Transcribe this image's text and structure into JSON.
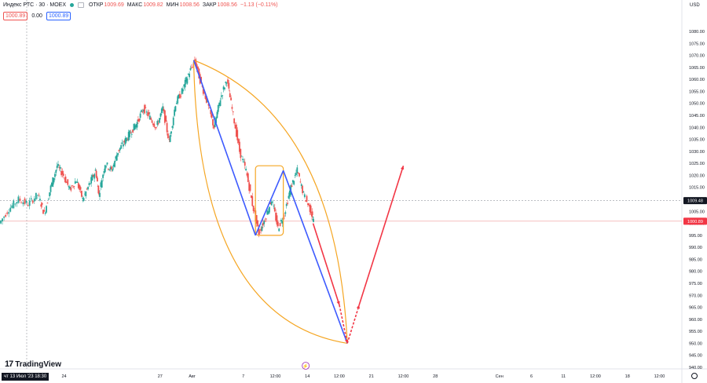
{
  "legend": {
    "symbol": "Индекс РТС · 30 · MOEX",
    "open_label": "ОТКР",
    "open": "1009.69",
    "high_label": "МАКС",
    "high": "1009.82",
    "low_label": "МИН",
    "low": "1008.56",
    "close_label": "ЗАКР",
    "close": "1008.56",
    "change": "−1.13 (−0.11%)"
  },
  "subrow": {
    "left_box": "1000.89",
    "mid": "0.00",
    "right_box": "1000.89"
  },
  "currency": "USD",
  "brand": "TradingView",
  "current_date": "чт 13 Июл '23  18:30",
  "colors": {
    "up": "#26a69a",
    "down": "#ef5350",
    "blue": "#3d5afe",
    "red": "#f23645",
    "orange": "#f5a623"
  },
  "chart_data": {
    "type": "candlestick",
    "ylim": [
      937,
      1085
    ],
    "y_ticks": [
      940,
      945,
      950,
      955,
      960,
      965,
      970,
      975,
      980,
      985,
      990,
      995,
      1000,
      1005,
      1010,
      1015,
      1020,
      1025,
      1030,
      1035,
      1040,
      1045,
      1050,
      1055,
      1060,
      1065,
      1070,
      1075,
      1080
    ],
    "x_ticks": [
      {
        "label": "12:00",
        "t": 1.0
      },
      {
        "label": "24",
        "t": 2.0
      },
      {
        "label": "27",
        "t": 5.0
      },
      {
        "label": "Авг",
        "t": 6.0
      },
      {
        "label": "7",
        "t": 7.6
      },
      {
        "label": "12:00",
        "t": 8.6
      },
      {
        "label": "14",
        "t": 9.6
      },
      {
        "label": "12:00",
        "t": 10.6
      },
      {
        "label": "21",
        "t": 11.6
      },
      {
        "label": "12:00",
        "t": 12.6
      },
      {
        "label": "28",
        "t": 13.6
      },
      {
        "label": "Сен",
        "t": 15.6
      },
      {
        "label": "6",
        "t": 16.6
      },
      {
        "label": "11",
        "t": 17.6
      },
      {
        "label": "12:00",
        "t": 18.6
      },
      {
        "label": "18",
        "t": 19.6
      },
      {
        "label": "12:00",
        "t": 20.6
      }
    ],
    "price_lines": [
      {
        "value": 1009.48,
        "label": "1009.48",
        "style": "dashed-gray",
        "tag": "dark"
      },
      {
        "value": 1000.89,
        "label": "1000.89",
        "style": "solid-red",
        "tag": "red"
      }
    ],
    "candle_path": [
      [
        0,
        1000
      ],
      [
        0.3,
        1006
      ],
      [
        0.6,
        1010
      ],
      [
        0.9,
        1008
      ],
      [
        1.2,
        1012
      ],
      [
        1.4,
        1004
      ],
      [
        1.6,
        1015
      ],
      [
        1.8,
        1024
      ],
      [
        2.0,
        1020
      ],
      [
        2.2,
        1014
      ],
      [
        2.4,
        1018
      ],
      [
        2.6,
        1010
      ],
      [
        2.8,
        1016
      ],
      [
        3.0,
        1022
      ],
      [
        3.1,
        1012
      ],
      [
        3.3,
        1025
      ],
      [
        3.5,
        1022
      ],
      [
        3.7,
        1030
      ],
      [
        3.9,
        1034
      ],
      [
        4.1,
        1038
      ],
      [
        4.3,
        1042
      ],
      [
        4.5,
        1048
      ],
      [
        4.7,
        1044
      ],
      [
        4.9,
        1040
      ],
      [
        5.1,
        1048
      ],
      [
        5.3,
        1034
      ],
      [
        5.5,
        1050
      ],
      [
        5.7,
        1055
      ],
      [
        5.9,
        1062
      ],
      [
        6.1,
        1068
      ],
      [
        6.3,
        1058
      ],
      [
        6.5,
        1050
      ],
      [
        6.7,
        1040
      ],
      [
        6.9,
        1052
      ],
      [
        7.1,
        1060
      ],
      [
        7.3,
        1045
      ],
      [
        7.5,
        1030
      ],
      [
        7.7,
        1022
      ],
      [
        7.9,
        1008
      ],
      [
        8.1,
        996
      ],
      [
        8.3,
        1002
      ],
      [
        8.5,
        1010
      ],
      [
        8.7,
        998
      ],
      [
        8.9,
        1004
      ],
      [
        9.1,
        1015
      ],
      [
        9.3,
        1022
      ],
      [
        9.5,
        1012
      ],
      [
        9.7,
        1006
      ],
      [
        9.8,
        1001
      ]
    ],
    "annotations": {
      "blue_lines": [
        [
          [
            6.05,
            1068
          ],
          [
            7.98,
            995
          ]
        ],
        [
          [
            7.98,
            995
          ],
          [
            8.85,
            1022
          ]
        ],
        [
          [
            8.85,
            1022
          ],
          [
            10.85,
            950
          ]
        ]
      ],
      "red_solid": [
        [
          [
            9.78,
            1000
          ],
          [
            10.6,
            966
          ]
        ],
        [
          [
            11.22,
            966
          ],
          [
            12.6,
            1024
          ]
        ]
      ],
      "red_dashed": [
        [
          [
            10.6,
            966
          ],
          [
            10.85,
            950
          ]
        ],
        [
          [
            10.85,
            950
          ],
          [
            11.22,
            966
          ]
        ]
      ],
      "rect": {
        "t0": 7.98,
        "t1": 8.85,
        "v0": 995,
        "v1": 1024
      },
      "arcs": [
        {
          "from": [
            6.05,
            1068
          ],
          "to": [
            10.85,
            950
          ],
          "ctrl": [
            10.5,
            1045
          ]
        },
        {
          "from": [
            6.05,
            1068
          ],
          "to": [
            10.85,
            950
          ],
          "ctrl": [
            6.2,
            960
          ]
        }
      ],
      "event_marker": {
        "t": 9.55,
        "v": 940,
        "label": "⚡"
      }
    }
  }
}
